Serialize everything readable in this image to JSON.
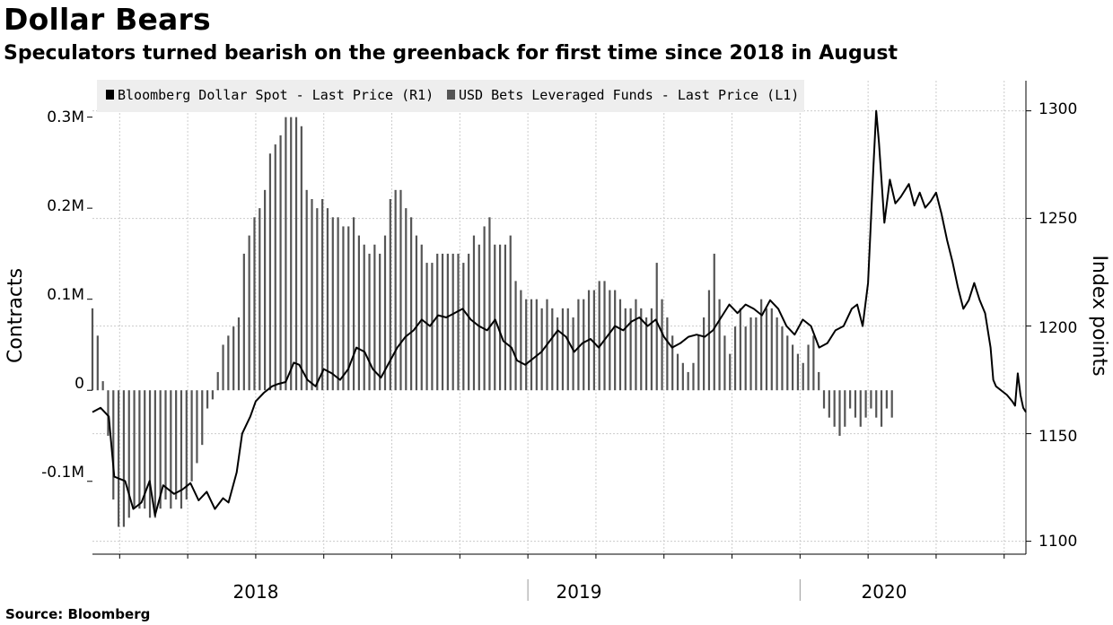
{
  "chart_data": {
    "type": "bar+line",
    "title": "Dollar Bears",
    "subtitle": "Speculators turned bearish on the greenback for first time since 2018 in August",
    "source": "Source: Bloomberg",
    "legend": [
      {
        "label": "Bloomberg Dollar Spot - Last Price (R1)",
        "color": "#000000"
      },
      {
        "label": "USD Bets Leveraged Funds - Last Price (L1)",
        "color": "#555555"
      }
    ],
    "left_axis": {
      "label": "Contracts",
      "min": -0.18,
      "max": 0.34,
      "ticks": [
        {
          "v": 0.3,
          "label": "0.3M"
        },
        {
          "v": 0.2,
          "label": "0.2M"
        },
        {
          "v": 0.1,
          "label": "0.1M"
        },
        {
          "v": 0,
          "label": "0"
        },
        {
          "v": -0.1,
          "label": "-0.1M"
        }
      ]
    },
    "right_axis": {
      "label": "Index points",
      "min": 1094,
      "max": 1314,
      "ticks": [
        {
          "v": 1300,
          "label": "1300"
        },
        {
          "v": 1250,
          "label": "1250"
        },
        {
          "v": 1200,
          "label": "1200"
        },
        {
          "v": 1150,
          "label": "1150"
        },
        {
          "v": 1100,
          "label": "1100"
        }
      ]
    },
    "x_axis": {
      "start": 2017.4,
      "end": 2020.83,
      "year_labels": [
        "2018",
        "2019",
        "2020"
      ]
    },
    "bars": {
      "series": "USD Bets Leveraged Funds - Last Price (L1)",
      "unit": "million contracts",
      "start": 2017.4,
      "step": 0.0192,
      "values": [
        0.09,
        0.06,
        0.01,
        -0.05,
        -0.12,
        -0.15,
        -0.15,
        -0.14,
        -0.13,
        -0.13,
        -0.13,
        -0.14,
        -0.14,
        -0.13,
        -0.12,
        -0.13,
        -0.12,
        -0.13,
        -0.12,
        -0.1,
        -0.08,
        -0.06,
        -0.02,
        -0.01,
        0.02,
        0.05,
        0.06,
        0.07,
        0.08,
        0.15,
        0.17,
        0.19,
        0.2,
        0.22,
        0.26,
        0.27,
        0.28,
        0.3,
        0.3,
        0.3,
        0.29,
        0.22,
        0.21,
        0.2,
        0.21,
        0.2,
        0.19,
        0.19,
        0.18,
        0.18,
        0.19,
        0.17,
        0.16,
        0.15,
        0.16,
        0.15,
        0.17,
        0.21,
        0.22,
        0.22,
        0.2,
        0.19,
        0.17,
        0.16,
        0.14,
        0.14,
        0.15,
        0.15,
        0.15,
        0.15,
        0.15,
        0.14,
        0.15,
        0.17,
        0.16,
        0.18,
        0.19,
        0.16,
        0.16,
        0.16,
        0.17,
        0.12,
        0.11,
        0.1,
        0.1,
        0.1,
        0.09,
        0.1,
        0.09,
        0.08,
        0.09,
        0.09,
        0.08,
        0.1,
        0.1,
        0.11,
        0.11,
        0.12,
        0.12,
        0.11,
        0.11,
        0.1,
        0.09,
        0.09,
        0.1,
        0.09,
        0.08,
        0.09,
        0.14,
        0.1,
        0.08,
        0.06,
        0.04,
        0.03,
        0.02,
        0.03,
        0.06,
        0.08,
        0.11,
        0.15,
        0.1,
        0.06,
        0.04,
        0.07,
        0.09,
        0.07,
        0.08,
        0.08,
        0.1,
        0.09,
        0.09,
        0.08,
        0.07,
        0.06,
        0.05,
        0.04,
        0.03,
        0.05,
        0.06,
        0.02,
        -0.02,
        -0.03,
        -0.04,
        -0.05,
        -0.04,
        -0.02,
        -0.03,
        -0.04,
        -0.03,
        -0.02,
        -0.03,
        -0.04,
        -0.02,
        -0.03
      ]
    },
    "line": {
      "series": "Bloomberg Dollar Spot - Last Price (R1)",
      "unit": "index points",
      "points": [
        [
          2017.4,
          1160
        ],
        [
          2017.43,
          1162
        ],
        [
          2017.46,
          1158
        ],
        [
          2017.48,
          1130
        ],
        [
          2017.52,
          1128
        ],
        [
          2017.55,
          1115
        ],
        [
          2017.58,
          1118
        ],
        [
          2017.61,
          1128
        ],
        [
          2017.63,
          1112
        ],
        [
          2017.66,
          1126
        ],
        [
          2017.7,
          1122
        ],
        [
          2017.73,
          1124
        ],
        [
          2017.76,
          1127
        ],
        [
          2017.79,
          1119
        ],
        [
          2017.82,
          1123
        ],
        [
          2017.85,
          1115
        ],
        [
          2017.88,
          1120
        ],
        [
          2017.9,
          1118
        ],
        [
          2017.93,
          1132
        ],
        [
          2017.95,
          1150
        ],
        [
          2017.98,
          1158
        ],
        [
          2018.0,
          1165
        ],
        [
          2018.03,
          1169
        ],
        [
          2018.06,
          1172
        ],
        [
          2018.08,
          1173
        ],
        [
          2018.11,
          1174
        ],
        [
          2018.14,
          1183
        ],
        [
          2018.16,
          1182
        ],
        [
          2018.19,
          1175
        ],
        [
          2018.22,
          1172
        ],
        [
          2018.25,
          1180
        ],
        [
          2018.28,
          1178
        ],
        [
          2018.31,
          1175
        ],
        [
          2018.34,
          1180
        ],
        [
          2018.37,
          1190
        ],
        [
          2018.4,
          1188
        ],
        [
          2018.43,
          1180
        ],
        [
          2018.46,
          1176
        ],
        [
          2018.49,
          1183
        ],
        [
          2018.52,
          1190
        ],
        [
          2018.55,
          1195
        ],
        [
          2018.58,
          1198
        ],
        [
          2018.61,
          1203
        ],
        [
          2018.64,
          1200
        ],
        [
          2018.67,
          1205
        ],
        [
          2018.7,
          1204
        ],
        [
          2018.73,
          1206
        ],
        [
          2018.76,
          1208
        ],
        [
          2018.79,
          1203
        ],
        [
          2018.82,
          1200
        ],
        [
          2018.85,
          1198
        ],
        [
          2018.88,
          1203
        ],
        [
          2018.91,
          1193
        ],
        [
          2018.94,
          1190
        ],
        [
          2018.96,
          1184
        ],
        [
          2018.99,
          1182
        ],
        [
          2019.02,
          1185
        ],
        [
          2019.05,
          1188
        ],
        [
          2019.08,
          1193
        ],
        [
          2019.11,
          1198
        ],
        [
          2019.14,
          1195
        ],
        [
          2019.17,
          1188
        ],
        [
          2019.2,
          1192
        ],
        [
          2019.23,
          1194
        ],
        [
          2019.26,
          1190
        ],
        [
          2019.29,
          1195
        ],
        [
          2019.32,
          1200
        ],
        [
          2019.35,
          1198
        ],
        [
          2019.38,
          1202
        ],
        [
          2019.41,
          1204
        ],
        [
          2019.44,
          1200
        ],
        [
          2019.47,
          1203
        ],
        [
          2019.5,
          1195
        ],
        [
          2019.53,
          1190
        ],
        [
          2019.56,
          1192
        ],
        [
          2019.59,
          1195
        ],
        [
          2019.62,
          1196
        ],
        [
          2019.65,
          1195
        ],
        [
          2019.68,
          1198
        ],
        [
          2019.71,
          1204
        ],
        [
          2019.74,
          1210
        ],
        [
          2019.77,
          1206
        ],
        [
          2019.8,
          1210
        ],
        [
          2019.83,
          1208
        ],
        [
          2019.86,
          1205
        ],
        [
          2019.89,
          1212
        ],
        [
          2019.92,
          1208
        ],
        [
          2019.95,
          1200
        ],
        [
          2019.98,
          1196
        ],
        [
          2020.01,
          1203
        ],
        [
          2020.04,
          1200
        ],
        [
          2020.07,
          1190
        ],
        [
          2020.1,
          1192
        ],
        [
          2020.13,
          1198
        ],
        [
          2020.16,
          1200
        ],
        [
          2020.19,
          1208
        ],
        [
          2020.21,
          1210
        ],
        [
          2020.23,
          1200
        ],
        [
          2020.25,
          1220
        ],
        [
          2020.27,
          1275
        ],
        [
          2020.28,
          1300
        ],
        [
          2020.29,
          1285
        ],
        [
          2020.31,
          1248
        ],
        [
          2020.33,
          1268
        ],
        [
          2020.35,
          1257
        ],
        [
          2020.37,
          1260
        ],
        [
          2020.4,
          1266
        ],
        [
          2020.42,
          1256
        ],
        [
          2020.44,
          1262
        ],
        [
          2020.46,
          1255
        ],
        [
          2020.48,
          1258
        ],
        [
          2020.5,
          1262
        ],
        [
          2020.52,
          1252
        ],
        [
          2020.54,
          1240
        ],
        [
          2020.56,
          1230
        ],
        [
          2020.58,
          1218
        ],
        [
          2020.6,
          1208
        ],
        [
          2020.62,
          1212
        ],
        [
          2020.64,
          1220
        ],
        [
          2020.66,
          1212
        ],
        [
          2020.68,
          1206
        ],
        [
          2020.7,
          1190
        ],
        [
          2020.71,
          1175
        ],
        [
          2020.72,
          1172
        ],
        [
          2020.74,
          1170
        ],
        [
          2020.76,
          1168
        ],
        [
          2020.78,
          1165
        ],
        [
          2020.79,
          1163
        ],
        [
          2020.8,
          1178
        ],
        [
          2020.81,
          1168
        ],
        [
          2020.82,
          1162
        ],
        [
          2020.83,
          1160
        ]
      ]
    }
  }
}
